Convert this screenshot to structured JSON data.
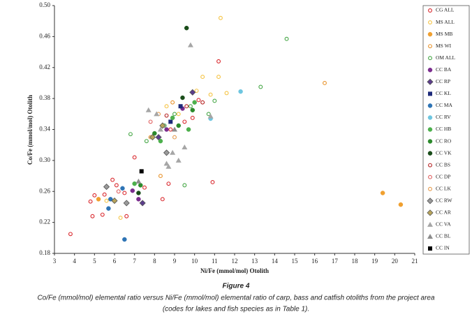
{
  "chart_data": {
    "type": "scatter",
    "x_label": "Ni/Fe (mmol/mol) Otolith",
    "y_label": "Co/Fe (mmol/mol) Otolith",
    "xlim": [
      3,
      21
    ],
    "xticks": [
      3,
      4,
      5,
      6,
      7,
      8,
      9,
      10,
      11,
      12,
      13,
      14,
      15,
      16,
      17,
      18,
      19,
      20,
      21
    ],
    "ylim": [
      0.18,
      0.5
    ],
    "yticks": [
      0.18,
      0.22,
      0.26,
      {
        "value": 0.3,
        "label": "0.30"
      },
      0.34,
      0.38,
      0.42,
      0.46,
      {
        "value": 0.5,
        "label": "0.50"
      }
    ],
    "legend": "right",
    "series": [
      {
        "name": "CG ALL",
        "color": "#d9262b",
        "marker": "circle-open",
        "x": [
          3.8,
          4.8,
          4.9,
          5.0,
          5.5,
          5.9,
          6.1,
          6.5,
          6.6,
          7.0,
          8.4,
          8.7,
          10.9,
          11.2,
          9.5,
          10.2,
          8.8,
          9.9,
          7.5,
          5.4
        ],
        "values": [
          0.205,
          0.247,
          0.228,
          0.255,
          0.256,
          0.275,
          0.268,
          0.258,
          0.228,
          0.304,
          0.25,
          0.27,
          0.272,
          0.428,
          0.35,
          0.378,
          0.34,
          0.355,
          0.265,
          0.23
        ]
      },
      {
        "name": "MS ALL",
        "color": "#f5c342",
        "marker": "circle-open",
        "x": [
          11.3,
          10.4,
          11.2,
          10.8,
          11.6,
          10.1,
          8.6,
          9.2,
          5.6,
          6.3
        ],
        "values": [
          0.484,
          0.408,
          0.408,
          0.385,
          0.387,
          0.39,
          0.37,
          0.36,
          0.248,
          0.226
        ]
      },
      {
        "name": "MS MB",
        "color": "#f0a030",
        "marker": "circle",
        "x": [
          19.4,
          20.3,
          5.2
        ],
        "values": [
          0.258,
          0.243,
          0.25
        ]
      },
      {
        "name": "MS WI",
        "color": "#e8922a",
        "marker": "circle-open",
        "x": [
          16.5,
          8.9,
          9.7,
          7.8,
          8.3
        ],
        "values": [
          0.4,
          0.375,
          0.34,
          0.33,
          0.28
        ]
      },
      {
        "name": "OM ALL",
        "color": "#44a644",
        "marker": "circle-open",
        "x": [
          14.6,
          13.3,
          11.0,
          9.8,
          9.5,
          6.8,
          7.6,
          8.5,
          10.7,
          9.0
        ],
        "values": [
          0.457,
          0.395,
          0.377,
          0.37,
          0.268,
          0.334,
          0.325,
          0.345,
          0.36,
          0.36
        ]
      },
      {
        "name": "CC BA",
        "color": "#7b2d8e",
        "marker": "circle",
        "x": [
          6.9,
          8.6,
          9.4,
          7.2
        ],
        "values": [
          0.261,
          0.34,
          0.367,
          0.25
        ]
      },
      {
        "name": "CC RP",
        "color": "#5c3d8c",
        "marker": "diamond",
        "x": [
          9.9,
          7.4,
          8.2
        ],
        "values": [
          0.388,
          0.245,
          0.33
        ]
      },
      {
        "name": "CC KL",
        "color": "#1e2a7a",
        "marker": "square",
        "x": [
          8.8,
          9.3
        ],
        "values": [
          0.35,
          0.37
        ]
      },
      {
        "name": "CC MA",
        "color": "#2e74b5",
        "marker": "circle",
        "x": [
          5.7,
          6.5,
          6.4,
          5.8
        ],
        "values": [
          0.238,
          0.198,
          0.264,
          0.25
        ]
      },
      {
        "name": "CC RV",
        "color": "#6ec6e0",
        "marker": "circle",
        "x": [
          12.3,
          10.8
        ],
        "values": [
          0.389,
          0.354
        ]
      },
      {
        "name": "CC HB",
        "color": "#4cb04c",
        "marker": "circle",
        "x": [
          7.0,
          8.3,
          9.7,
          10.0,
          8.9
        ],
        "values": [
          0.27,
          0.325,
          0.34,
          0.375,
          0.355
        ]
      },
      {
        "name": "CC RO",
        "color": "#2c8a2c",
        "marker": "circle",
        "x": [
          7.3,
          8.0,
          9.2,
          9.9
        ],
        "values": [
          0.268,
          0.335,
          0.345,
          0.365
        ]
      },
      {
        "name": "CC VK",
        "color": "#1a4d1a",
        "marker": "circle",
        "x": [
          9.6,
          9.4,
          7.2
        ],
        "values": [
          0.471,
          0.381,
          0.258
        ]
      },
      {
        "name": "CC BS",
        "color": "#b52020",
        "marker": "circle-open",
        "x": [
          8.6,
          9.6,
          10.4
        ],
        "values": [
          0.358,
          0.37,
          0.375
        ]
      },
      {
        "name": "CC DP",
        "color": "#e06060",
        "marker": "circle-open",
        "x": [
          6.2,
          7.8
        ],
        "values": [
          0.26,
          0.35
        ]
      },
      {
        "name": "CC LK",
        "color": "#e59a4d",
        "marker": "circle-open",
        "x": [
          8.2,
          9.0
        ],
        "values": [
          0.36,
          0.33
        ]
      },
      {
        "name": "CC RW",
        "color": "#9a9a9a",
        "marker": "diamond",
        "x": [
          5.6,
          6.6,
          8.6
        ],
        "values": [
          0.266,
          0.245,
          0.31
        ]
      },
      {
        "name": "CC AR",
        "color": "#b8a45a",
        "marker": "diamond",
        "x": [
          6.0,
          7.9,
          8.4
        ],
        "values": [
          0.248,
          0.33,
          0.345
        ]
      },
      {
        "name": "CC VA",
        "color": "#a6a6a6",
        "marker": "triangle",
        "x": [
          9.8,
          7.7,
          8.1,
          8.6,
          8.9,
          9.2,
          9.5,
          8.7,
          10.8,
          8.3
        ],
        "values": [
          0.449,
          0.365,
          0.36,
          0.296,
          0.31,
          0.3,
          0.317,
          0.292,
          0.357,
          0.34
        ]
      },
      {
        "name": "CC BL",
        "color": "#8c8c8c",
        "marker": "triangle",
        "x": [
          7.2,
          9.0
        ],
        "values": [
          0.273,
          0.34
        ]
      },
      {
        "name": "CC IN",
        "color": "#000000",
        "marker": "square",
        "x": [
          7.35
        ],
        "values": [
          0.286
        ]
      }
    ]
  },
  "figure": {
    "label": "Figure 4",
    "caption_lines": [
      "Co/Fe (mmol/mol) elemental ratio versus Ni/Fe (mmol/mol) elemental ratio of carp, bass and catfish otoliths from the project area",
      "(codes for lakes and fish species as in Table 1)."
    ]
  }
}
